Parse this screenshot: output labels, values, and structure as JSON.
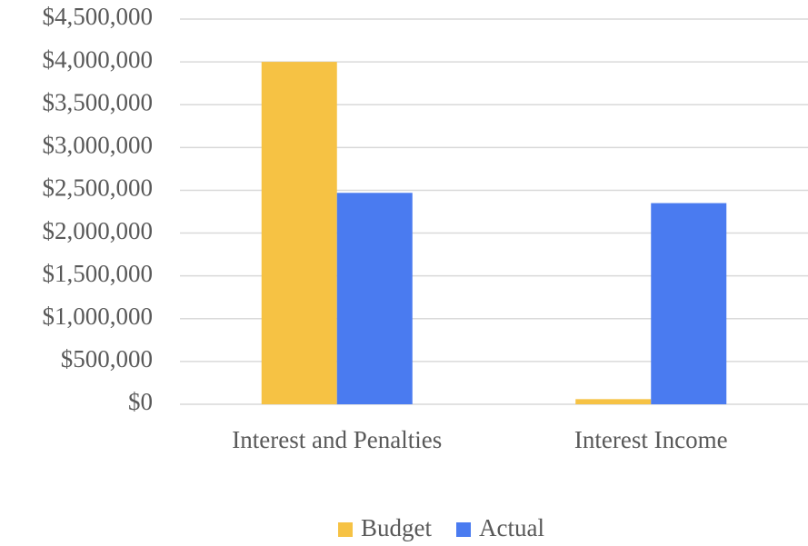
{
  "chart_data": {
    "type": "bar",
    "categories": [
      "Interest and Penalties",
      "Interest Income"
    ],
    "series": [
      {
        "name": "Budget",
        "color": "#f6c244",
        "values": [
          4000000,
          60000
        ]
      },
      {
        "name": "Actual",
        "color": "#4a7bf0",
        "values": [
          2470000,
          2350000
        ]
      }
    ],
    "ylim": [
      0,
      4500000
    ],
    "yticks": [
      {
        "value": 0,
        "label": "$0"
      },
      {
        "value": 500000,
        "label": "$500,000"
      },
      {
        "value": 1000000,
        "label": "$1,000,000"
      },
      {
        "value": 1500000,
        "label": "$1,500,000"
      },
      {
        "value": 2000000,
        "label": "$2,000,000"
      },
      {
        "value": 2500000,
        "label": "$2,500,000"
      },
      {
        "value": 3000000,
        "label": "$3,000,000"
      },
      {
        "value": 3500000,
        "label": "$3,500,000"
      },
      {
        "value": 4000000,
        "label": "$4,000,000"
      },
      {
        "value": 4500000,
        "label": "$4,500,000"
      }
    ],
    "grid": true,
    "legend": "bottom"
  }
}
